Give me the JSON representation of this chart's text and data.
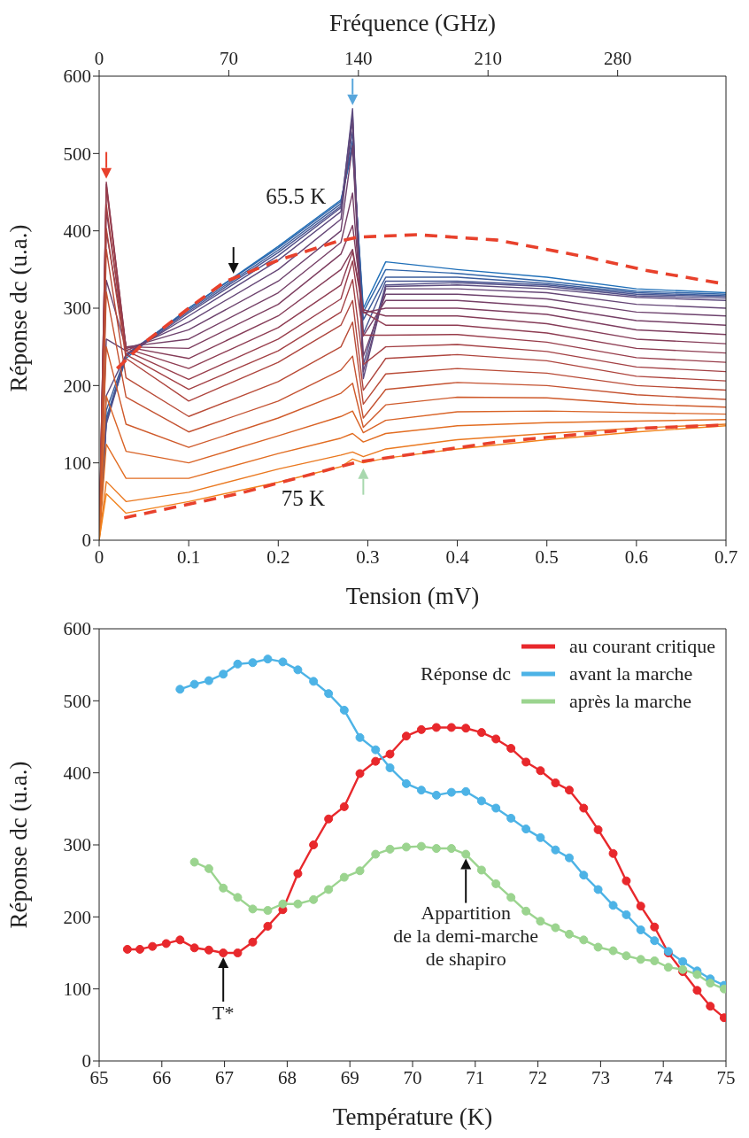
{
  "chart_data": [
    {
      "type": "line",
      "xlabel": "Tension (mV)",
      "ylabel": "Réponse dc (u.a.)",
      "x2label": "Fréquence (GHz)",
      "xlim": [
        0,
        0.7
      ],
      "xticks": [
        0,
        0.1,
        0.2,
        0.3,
        0.4,
        0.5,
        0.6,
        0.7
      ],
      "x2lim": [
        0,
        338.5
      ],
      "x2ticks": [
        0,
        70,
        140,
        210,
        280
      ],
      "ylim": [
        0,
        600
      ],
      "yticks": [
        0,
        100,
        200,
        300,
        400,
        500,
        600
      ],
      "grid": false,
      "legend": false,
      "marker": "none",
      "line_style": "solid",
      "x": [
        0,
        0.008,
        0.03,
        0.1,
        0.2,
        0.27,
        0.283,
        0.295,
        0.32,
        0.4,
        0.5,
        0.6,
        0.7
      ],
      "series": [
        {
          "color": "#1f6fb8",
          "values": [
            0,
            155,
            235,
            300,
            380,
            440,
            505,
            300,
            360,
            350,
            340,
            325,
            320
          ]
        },
        {
          "color": "#2f64a8",
          "values": [
            0,
            159,
            238,
            300,
            378,
            438,
            510,
            295,
            350,
            345,
            335,
            322,
            318
          ]
        },
        {
          "color": "#3a5c9c",
          "values": [
            0,
            168,
            240,
            298,
            375,
            435,
            516,
            285,
            340,
            340,
            332,
            320,
            316
          ]
        },
        {
          "color": "#475592",
          "values": [
            0,
            154,
            240,
            296,
            372,
            432,
            528,
            267,
            335,
            335,
            330,
            318,
            315
          ]
        },
        {
          "color": "#524f88",
          "values": [
            0,
            150,
            238,
            294,
            368,
            430,
            551,
            227,
            330,
            333,
            328,
            316,
            313
          ]
        },
        {
          "color": "#5c4a7e",
          "values": [
            0,
            187,
            240,
            290,
            362,
            425,
            558,
            209,
            328,
            330,
            325,
            314,
            310
          ]
        },
        {
          "color": "#654676",
          "values": [
            0,
            260,
            245,
            282,
            350,
            415,
            543,
            218,
            325,
            325,
            320,
            305,
            300
          ]
        },
        {
          "color": "#6d426d",
          "values": [
            0,
            336,
            248,
            272,
            335,
            400,
            510,
            238,
            318,
            318,
            312,
            295,
            290
          ]
        },
        {
          "color": "#753f66",
          "values": [
            0,
            399,
            250,
            260,
            320,
            385,
            449,
            264,
            310,
            310,
            302,
            284,
            278
          ]
        },
        {
          "color": "#7d3d5f",
          "values": [
            0,
            426,
            250,
            248,
            305,
            370,
            407,
            294,
            300,
            300,
            292,
            272,
            266
          ]
        },
        {
          "color": "#853c58",
          "values": [
            0,
            460,
            250,
            235,
            290,
            350,
            376,
            298,
            290,
            290,
            280,
            260,
            254
          ]
        },
        {
          "color": "#8e3c52",
          "values": [
            0,
            463,
            248,
            222,
            275,
            330,
            373,
            295,
            278,
            278,
            268,
            248,
            242
          ]
        },
        {
          "color": "#983d4b",
          "values": [
            0,
            456,
            245,
            208,
            260,
            312,
            361,
            265,
            265,
            266,
            256,
            236,
            230
          ]
        },
        {
          "color": "#a34044",
          "values": [
            0,
            434,
            240,
            195,
            245,
            295,
            337,
            227,
            250,
            253,
            244,
            224,
            218
          ]
        },
        {
          "color": "#ae453e",
          "values": [
            0,
            403,
            235,
            180,
            230,
            278,
            310,
            194,
            235,
            240,
            232,
            212,
            206
          ]
        },
        {
          "color": "#b94b37",
          "values": [
            0,
            376,
            210,
            160,
            205,
            250,
            282,
            176,
            215,
            222,
            216,
            200,
            194
          ]
        },
        {
          "color": "#c45231",
          "values": [
            0,
            321,
            185,
            140,
            180,
            220,
            238,
            158,
            195,
            204,
            200,
            188,
            182
          ]
        },
        {
          "color": "#cf5a2b",
          "values": [
            0,
            250,
            150,
            120,
            158,
            190,
            203,
            146,
            175,
            185,
            184,
            176,
            172
          ]
        },
        {
          "color": "#d96326",
          "values": [
            0,
            186,
            115,
            100,
            135,
            160,
            167,
            139,
            155,
            166,
            167,
            165,
            163
          ]
        },
        {
          "color": "#e26d22",
          "values": [
            0,
            124,
            80,
            80,
            112,
            132,
            138,
            127,
            138,
            148,
            152,
            154,
            156
          ]
        },
        {
          "color": "#ea781f",
          "values": [
            0,
            76,
            50,
            62,
            92,
            110,
            114,
            108,
            118,
            130,
            138,
            145,
            150
          ]
        },
        {
          "color": "#f2831c",
          "values": [
            0,
            60,
            35,
            50,
            75,
            95,
            105,
            100,
            106,
            118,
            130,
            140,
            148
          ]
        },
        {
          "color": "#e8412c",
          "line_style": "dashed",
          "x": [
            0.02,
            0.05,
            0.1,
            0.14,
            0.2,
            0.265,
            0.29,
            0.355,
            0.445,
            0.545,
            0.61,
            0.7
          ],
          "values": [
            222,
            255,
            300,
            334,
            362,
            386,
            392,
            395,
            388,
            366,
            349,
            331
          ]
        },
        {
          "color": "#e8412c",
          "line_style": "dashed",
          "x": [
            0.028,
            0.155,
            0.288,
            0.445,
            0.611,
            0.7
          ],
          "values": [
            29,
            60,
            101,
            127,
            145,
            149
          ]
        }
      ],
      "annotations": [
        {
          "text": "65.5 K",
          "x": 0.2,
          "y": 380
        },
        {
          "text": "75 K",
          "x": 0.2,
          "y": 75
        }
      ]
    },
    {
      "type": "line",
      "xlabel": "Température (K)",
      "ylabel": "Réponse dc (u.a.)",
      "legend_title": "Réponse dc",
      "xlim": [
        65,
        75
      ],
      "xticks": [
        65,
        66,
        67,
        68,
        69,
        70,
        71,
        72,
        73,
        74,
        75
      ],
      "ylim": [
        0,
        600
      ],
      "yticks": [
        0,
        100,
        200,
        300,
        400,
        500,
        600
      ],
      "grid": false,
      "legend": "top right",
      "marker": "circle",
      "line_style": "solid",
      "x": [
        65.45,
        65.65,
        65.85,
        66.07,
        66.29,
        66.52,
        66.75,
        66.98,
        67.21,
        67.45,
        67.69,
        67.93,
        68.17,
        68.42,
        68.66,
        68.91,
        69.16,
        69.41,
        69.64,
        69.9,
        70.14,
        70.38,
        70.62,
        70.85,
        71.1,
        71.33,
        71.57,
        71.81,
        72.04,
        72.28,
        72.5,
        72.73,
        72.96,
        73.2,
        73.41,
        73.64,
        73.86,
        74.08,
        74.31,
        74.54,
        74.75,
        74.97
      ],
      "series": [
        {
          "name": "au courant critique",
          "color": "#e8282c",
          "values": [
            155,
            155,
            159,
            163,
            168,
            157,
            154,
            150,
            150,
            165,
            187,
            210,
            260,
            300,
            336,
            353,
            399,
            416,
            426,
            451,
            460,
            463,
            463,
            462,
            456,
            447,
            434,
            415,
            403,
            386,
            376,
            351,
            321,
            288,
            250,
            215,
            186,
            150,
            124,
            98,
            76,
            60
          ]
        },
        {
          "name": "avant la marche",
          "color": "#4db3e6",
          "x": [
            66.29,
            66.52,
            66.75,
            66.98,
            67.21,
            67.45,
            67.69,
            67.93,
            68.17,
            68.42,
            68.66,
            68.91,
            69.16,
            69.41,
            69.64,
            69.9,
            70.14,
            70.38,
            70.62,
            70.85,
            71.1,
            71.33,
            71.57,
            71.81,
            72.04,
            72.28,
            72.5,
            72.73,
            72.96,
            73.2,
            73.41,
            73.64,
            73.86,
            74.08,
            74.31,
            74.54,
            74.75,
            74.97
          ],
          "values": [
            516,
            523,
            528,
            537,
            551,
            553,
            558,
            554,
            543,
            527,
            510,
            487,
            449,
            432,
            407,
            385,
            376,
            369,
            373,
            374,
            361,
            351,
            337,
            322,
            310,
            293,
            282,
            258,
            238,
            216,
            203,
            182,
            167,
            152,
            138,
            125,
            114,
            105
          ]
        },
        {
          "name": "après la marche",
          "color": "#9bd48f",
          "x": [
            66.52,
            66.75,
            66.98,
            67.21,
            67.45,
            67.69,
            67.93,
            68.17,
            68.42,
            68.66,
            68.91,
            69.16,
            69.41,
            69.64,
            69.9,
            70.14,
            70.38,
            70.62,
            70.85,
            71.1,
            71.33,
            71.57,
            71.81,
            72.04,
            72.28,
            72.5,
            72.73,
            72.96,
            73.2,
            73.41,
            73.64,
            73.86,
            74.08,
            74.31,
            74.54,
            74.75,
            74.97
          ],
          "values": [
            276,
            267,
            240,
            227,
            211,
            209,
            218,
            218,
            224,
            238,
            255,
            264,
            287,
            294,
            297,
            298,
            295,
            295,
            287,
            265,
            246,
            227,
            208,
            194,
            185,
            176,
            168,
            158,
            153,
            146,
            141,
            139,
            130,
            127,
            120,
            108,
            100
          ]
        }
      ],
      "annotations": [
        {
          "text": "T*",
          "x": 66.98,
          "y": 150
        },
        {
          "text": "Appartition\nde la demi-marche\nde shapiro",
          "x": 70.85,
          "y": 287
        }
      ]
    }
  ]
}
